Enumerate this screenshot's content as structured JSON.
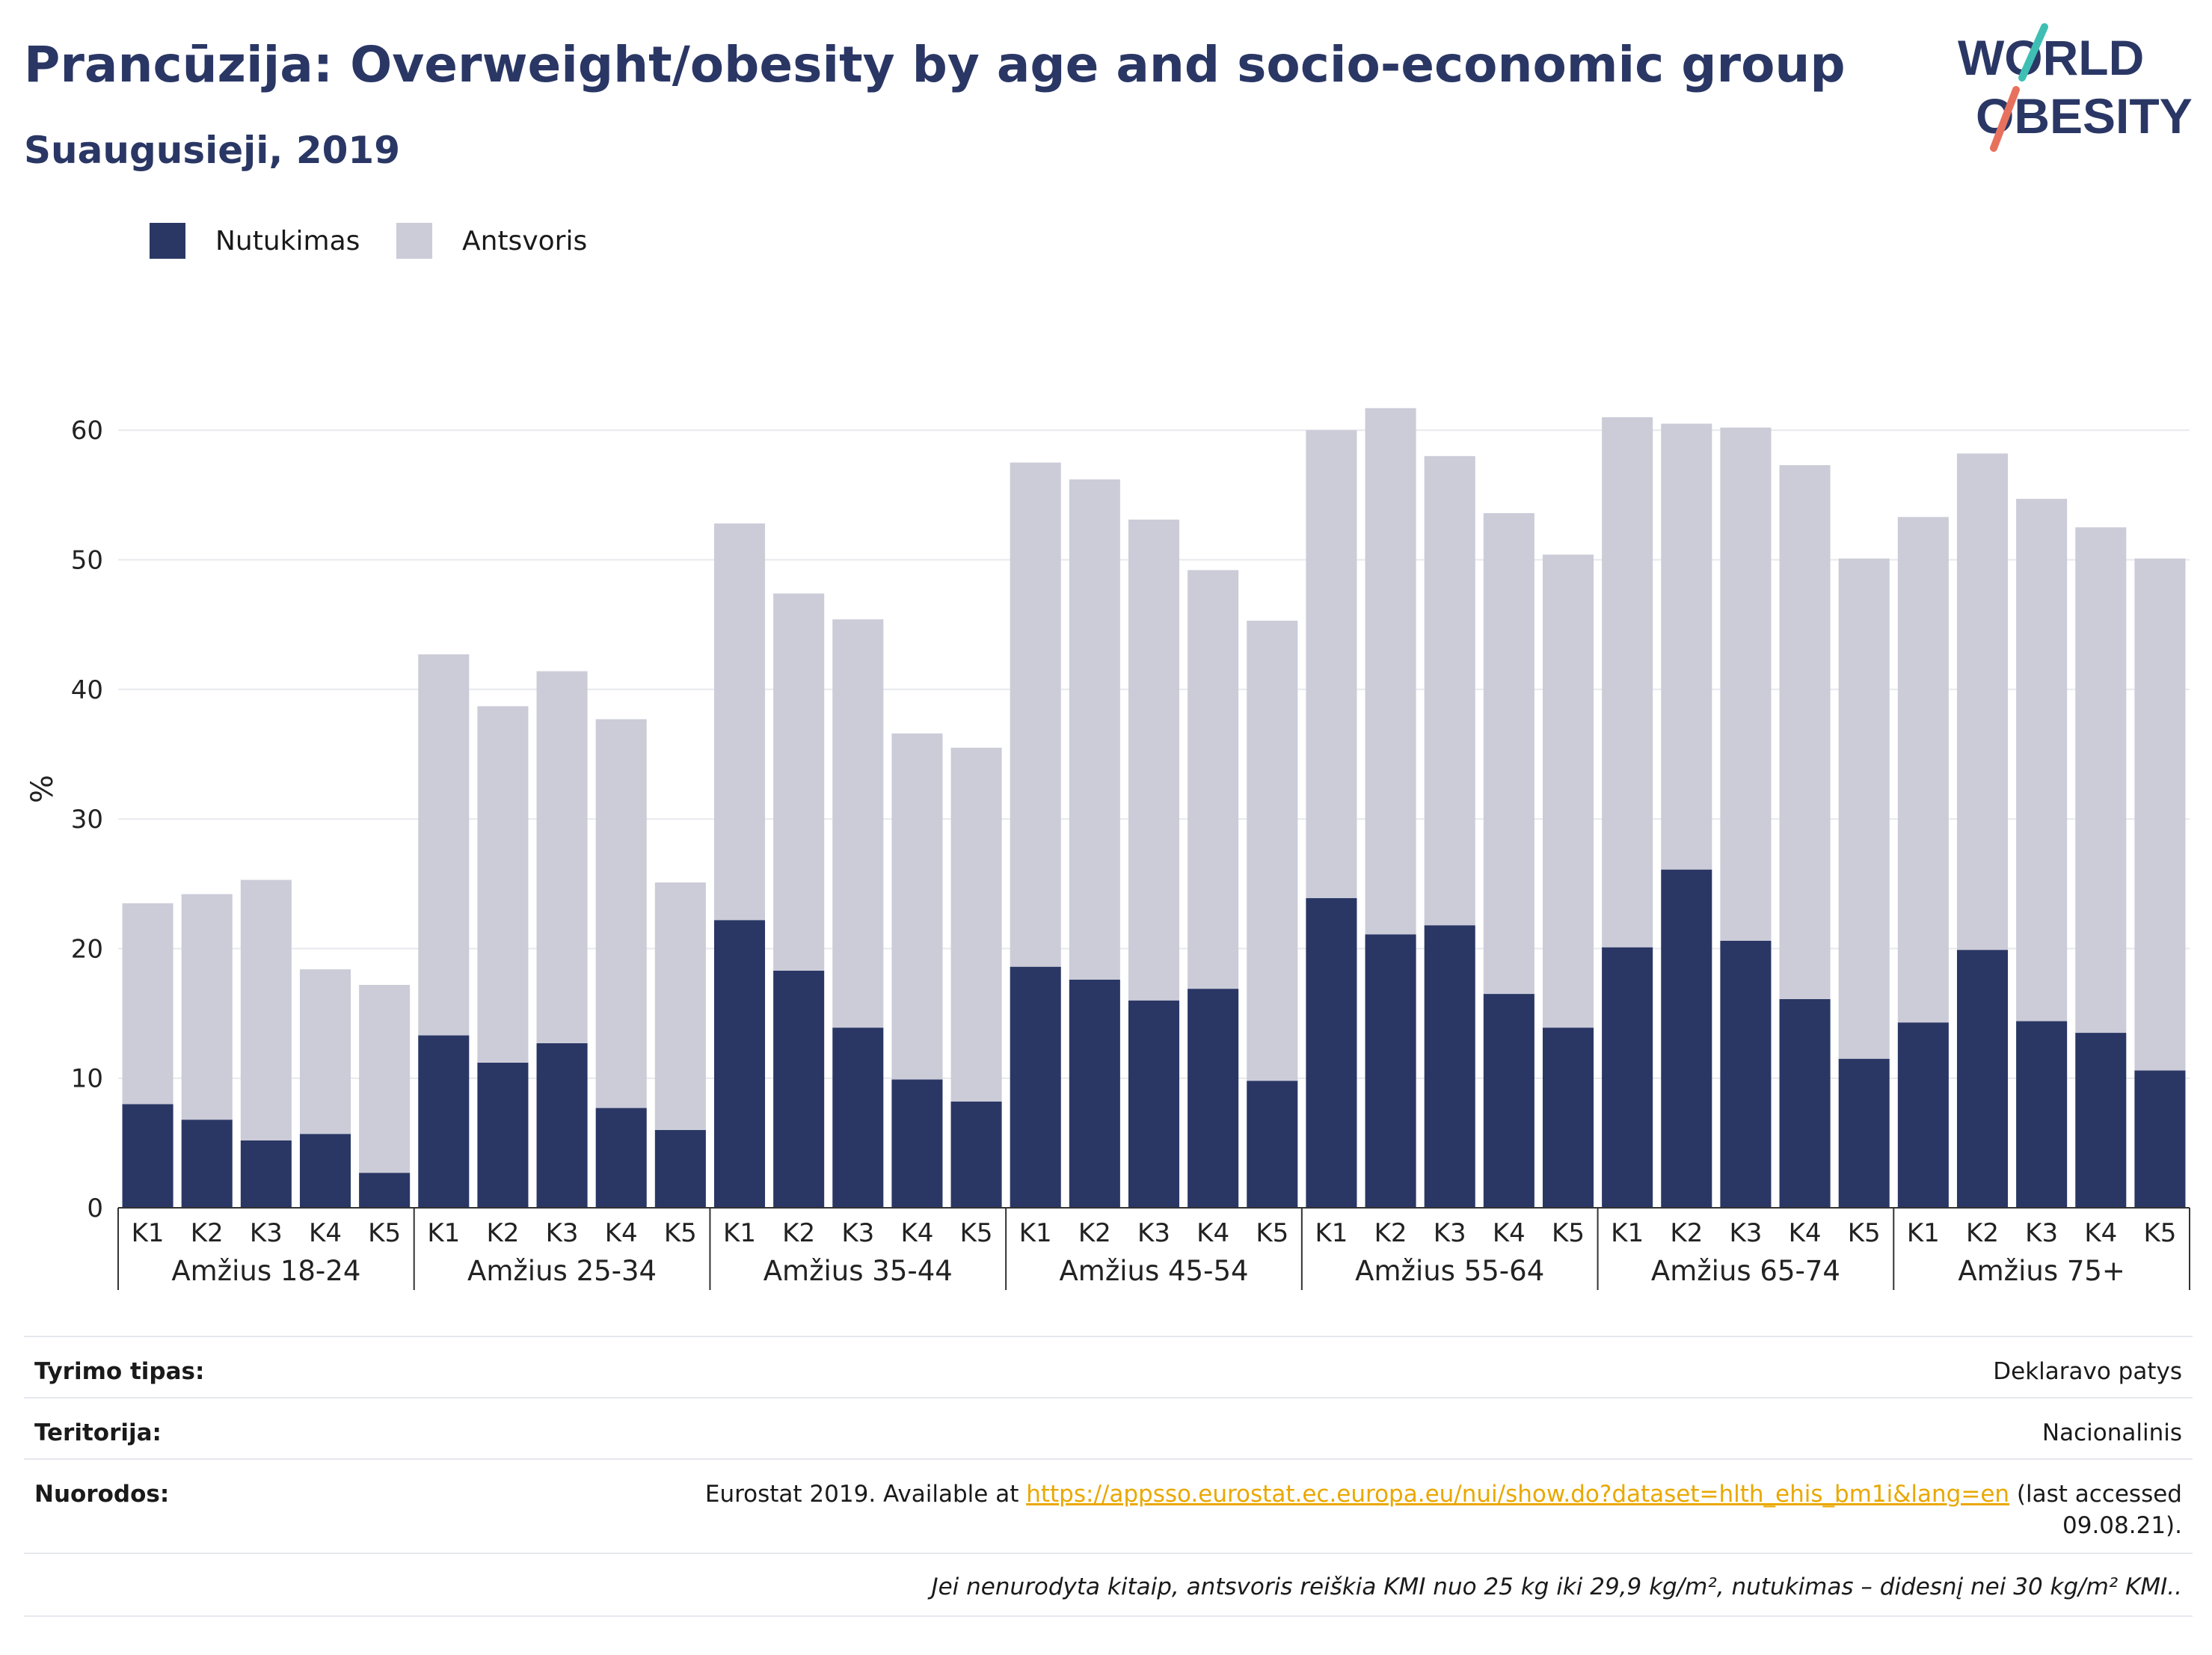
{
  "title": "Prancūzija: Overweight/obesity by age and socio-economic group",
  "subtitle": "Suaugusieji, 2019",
  "logo": {
    "line1": "WORLD",
    "line2": "OBESITY"
  },
  "colors": {
    "obesity": "#2a3765",
    "overweight": "#cbccd8",
    "grid": "#e8e9ee",
    "title": "#2a3765",
    "link": "#e9a800"
  },
  "footer": {
    "survey_label": "Tyrimo tipas:",
    "survey_value": "Deklaravo patys",
    "territory_label": "Teritorija:",
    "territory_value": "Nacionalinis",
    "refs_label": "Nuorodos:",
    "refs_prefix": "Eurostat 2019. Available at ",
    "refs_link": "https://appsso.eurostat.ec.europa.eu/nui/show.do?dataset=hlth_ehis_bm1i&lang=en",
    "refs_suffix": " (last accessed",
    "refs_date": "09.08.21).",
    "note": "Jei nenurodyta kitaip, antsvoris reiškia KMI nuo 25 kg iki 29,9 kg/m², nutukimas – didesnį nei 30 kg/m² KMI.."
  },
  "chart_data": {
    "type": "bar",
    "stacked": true,
    "ylabel": "%",
    "ylim": [
      0,
      65
    ],
    "yticks": [
      0,
      10,
      20,
      30,
      40,
      50,
      60
    ],
    "grid": true,
    "legend_position": "top-left",
    "groups": [
      "Amžius 18-24",
      "Amžius 25-34",
      "Amžius 35-44",
      "Amžius 45-54",
      "Amžius 55-64",
      "Amžius 65-74",
      "Amžius 75+"
    ],
    "categories": [
      "K1",
      "K2",
      "K3",
      "K4",
      "K5"
    ],
    "series": [
      {
        "name": "Nutukimas",
        "color": "#2a3765",
        "values": [
          [
            8.0,
            6.8,
            5.2,
            5.7,
            2.7
          ],
          [
            13.3,
            11.2,
            12.7,
            7.7,
            6.0
          ],
          [
            22.2,
            18.3,
            13.9,
            9.9,
            8.2
          ],
          [
            18.6,
            17.6,
            16.0,
            16.9,
            9.8
          ],
          [
            23.9,
            21.1,
            21.8,
            16.5,
            13.9
          ],
          [
            20.1,
            26.1,
            20.6,
            16.1,
            11.5
          ],
          [
            14.3,
            19.9,
            14.4,
            13.5,
            10.6
          ]
        ]
      },
      {
        "name": "Antsvoris",
        "color": "#cbccd8",
        "values": [
          [
            15.5,
            17.4,
            20.1,
            12.7,
            14.5
          ],
          [
            29.4,
            27.5,
            28.7,
            30.0,
            19.1
          ],
          [
            30.6,
            29.1,
            31.5,
            26.7,
            27.3
          ],
          [
            38.9,
            38.6,
            37.1,
            32.3,
            35.5
          ],
          [
            36.1,
            40.6,
            36.2,
            37.1,
            36.5
          ],
          [
            40.9,
            34.4,
            39.6,
            41.2,
            38.6
          ],
          [
            39.0,
            38.3,
            40.3,
            39.0,
            39.5
          ]
        ]
      }
    ]
  }
}
